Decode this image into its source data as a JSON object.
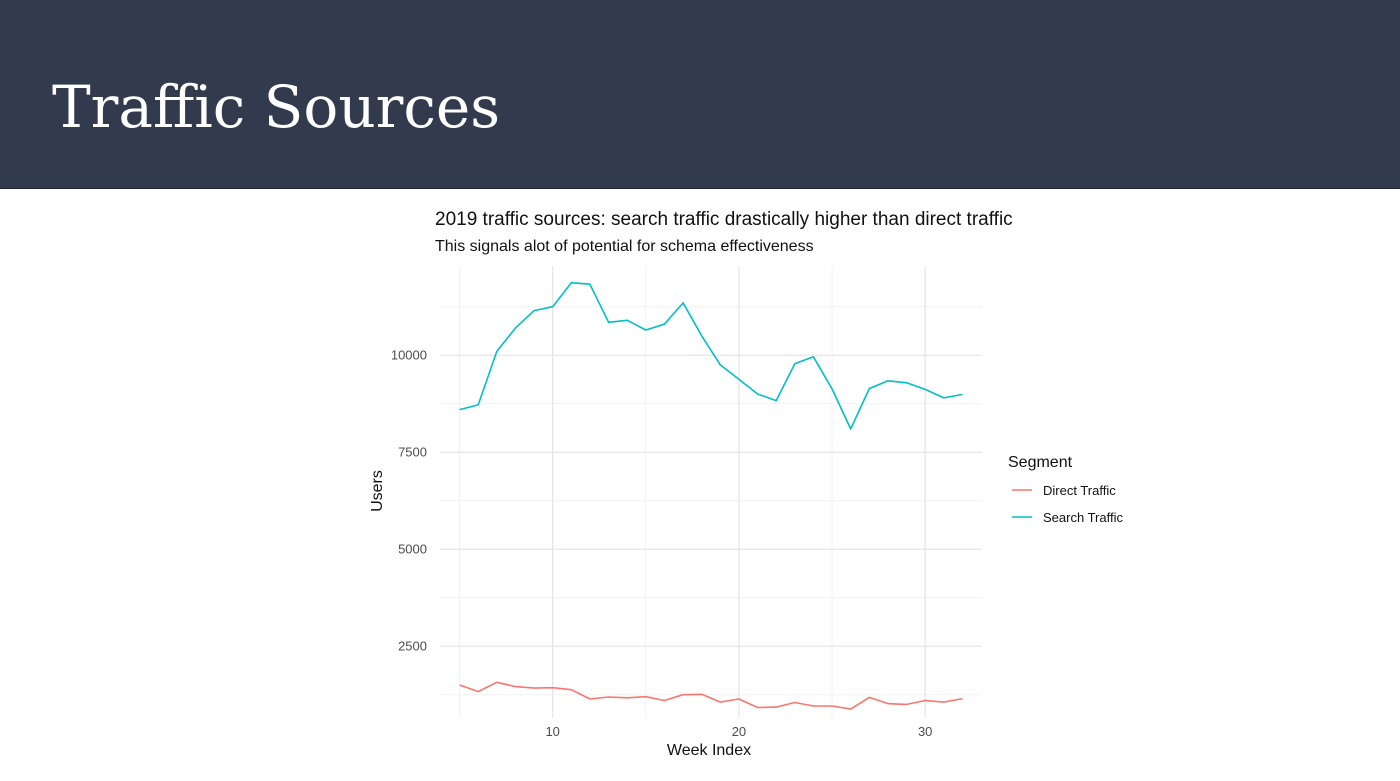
{
  "slide": {
    "title": "Traffic Sources"
  },
  "chart_data": {
    "type": "line",
    "title": "2019 traffic sources: search traffic drastically higher than direct traffic",
    "subtitle": "This signals alot of potential for schema effectiveness",
    "xlabel": "Week Index",
    "ylabel": "Users",
    "xlim": [
      5,
      32
    ],
    "ylim": [
      650,
      12300
    ],
    "x_ticks": [
      10,
      20,
      30
    ],
    "y_ticks": [
      2500,
      5000,
      7500,
      10000
    ],
    "grid": true,
    "legend": {
      "title": "Segment",
      "position": "right"
    },
    "x": [
      5,
      6,
      7,
      8,
      9,
      10,
      11,
      12,
      13,
      14,
      15,
      16,
      17,
      18,
      19,
      20,
      21,
      22,
      23,
      24,
      25,
      26,
      27,
      28,
      29,
      30,
      31,
      32
    ],
    "series": [
      {
        "name": "Direct Traffic",
        "color": "#f8766d",
        "values": [
          1500,
          1330,
          1570,
          1460,
          1420,
          1430,
          1380,
          1140,
          1190,
          1170,
          1200,
          1100,
          1250,
          1260,
          1060,
          1140,
          920,
          930,
          1050,
          960,
          960,
          880,
          1180,
          1020,
          1000,
          1100,
          1060,
          1150
        ]
      },
      {
        "name": "Search Traffic",
        "color": "#00bfc4",
        "values": [
          8600,
          8720,
          10100,
          10700,
          11150,
          11250,
          11870,
          11830,
          10850,
          10900,
          10650,
          10800,
          11350,
          10500,
          9750,
          9380,
          9000,
          8830,
          9780,
          9960,
          9130,
          8100,
          9140,
          9340,
          9290,
          9120,
          8900,
          8990
        ]
      }
    ]
  }
}
